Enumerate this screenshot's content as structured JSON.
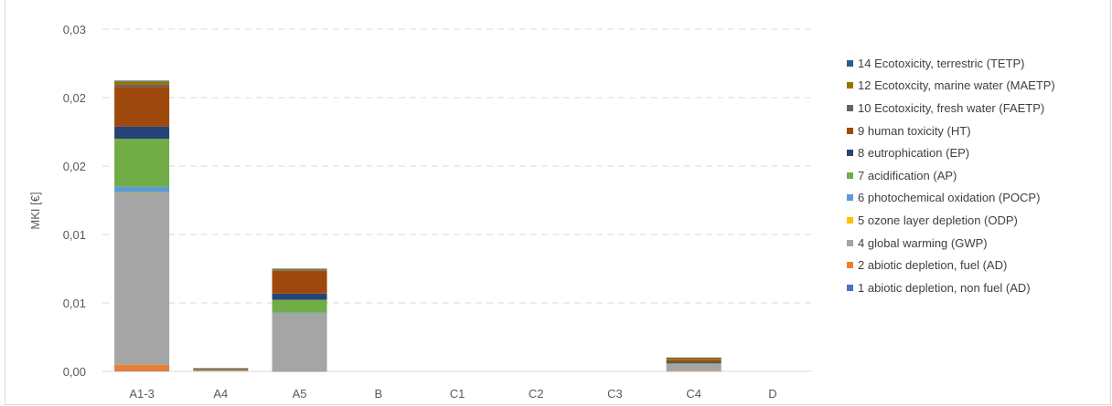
{
  "chart_data": {
    "type": "bar",
    "stacked": true,
    "title": "",
    "xlabel": "",
    "ylabel": "MKI [€]",
    "ylim": [
      0,
      0.025
    ],
    "ytick_values": [
      0,
      0.005,
      0.01,
      0.015,
      0.02,
      0.025
    ],
    "ytick_labels": [
      "0,00",
      "0,01",
      "0,01",
      "0,02",
      "0,02",
      "0,03"
    ],
    "grid": true,
    "legend_position": "right",
    "categories": [
      "A1-3",
      "A4",
      "A5",
      "B",
      "C1",
      "C2",
      "C3",
      "C4",
      "D"
    ],
    "series": [
      {
        "name": "1 abiotic depletion, non fuel (AD)",
        "color": "#4472c4",
        "values": [
          2e-05,
          0,
          1e-05,
          0,
          0,
          0,
          0,
          0,
          0
        ]
      },
      {
        "name": "2 abiotic depletion, fuel (AD)",
        "color": "#ed7d31",
        "values": [
          0.00046,
          3e-05,
          3e-05,
          0,
          0,
          0,
          0,
          1e-05,
          0
        ]
      },
      {
        "name": "4 global warming (GWP)",
        "color": "#a5a5a5",
        "values": [
          0.0126,
          8e-05,
          0.0042,
          0,
          0,
          0,
          0,
          0.00055,
          0
        ]
      },
      {
        "name": "5 ozone layer depletion (ODP)",
        "color": "#ffc000",
        "values": [
          1e-05,
          0,
          0,
          0,
          0,
          0,
          0,
          0,
          0
        ]
      },
      {
        "name": "6 photochemical oxidation (POCP)",
        "color": "#5b9bd5",
        "values": [
          0.0004,
          1e-05,
          4e-05,
          0,
          0,
          0,
          0,
          1e-05,
          0
        ]
      },
      {
        "name": "7 acidification (AP)",
        "color": "#70ad47",
        "values": [
          0.0035,
          3e-05,
          0.00095,
          0,
          0,
          0,
          0,
          4e-05,
          0
        ]
      },
      {
        "name": "8 eutrophication (EP)",
        "color": "#264478",
        "values": [
          0.0009,
          1e-05,
          0.00045,
          0,
          0,
          0,
          0,
          2e-05,
          0
        ]
      },
      {
        "name": "9 human toxicity (HT)",
        "color": "#9e480e",
        "values": [
          0.0029,
          4e-05,
          0.00165,
          0,
          0,
          0,
          0,
          0.0002,
          0
        ]
      },
      {
        "name": "10 Ecotoxicity, fresh water (FAETP)",
        "color": "#636363",
        "values": [
          0.00015,
          0,
          5e-05,
          0,
          0,
          0,
          0,
          2e-05,
          0
        ]
      },
      {
        "name": "12 Ecotoxcity, marine water (MAETP)",
        "color": "#997300",
        "values": [
          0.00025,
          3e-05,
          0.0001,
          0,
          0,
          0,
          0,
          0.00015,
          0
        ]
      },
      {
        "name": "14 Ecotoxicity, terrestric (TETP)",
        "color": "#255e91",
        "values": [
          5e-05,
          0,
          2e-05,
          0,
          0,
          0,
          0,
          1e-05,
          0
        ]
      }
    ]
  }
}
